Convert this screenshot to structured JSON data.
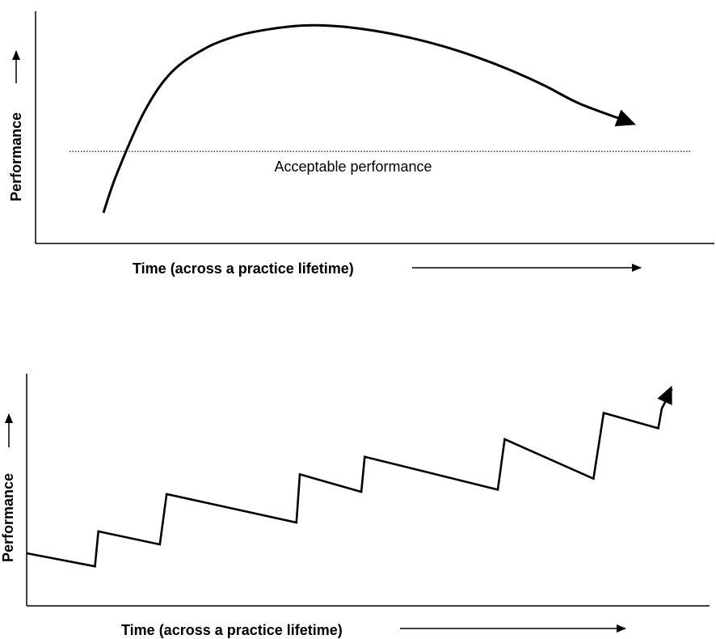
{
  "chart_data": [
    {
      "type": "line",
      "xlabel": "Time (across a practice lifetime)",
      "ylabel": "Performance",
      "x_range": [
        0,
        100
      ],
      "y_range": [
        0,
        100
      ],
      "grid": false,
      "series": [
        {
          "x": [
            10,
            12,
            16,
            20,
            25,
            30,
            35,
            40,
            45,
            50,
            55,
            60,
            65,
            70,
            75,
            80,
            86
          ],
          "y": [
            14,
            32,
            60,
            78,
            89,
            95,
            98,
            99.5,
            99,
            97,
            94,
            90,
            85,
            79,
            72,
            64,
            57
          ]
        }
      ],
      "reference_lines": [
        {
          "y": 42,
          "label": "Acceptable performance",
          "style": "dotted"
        }
      ]
    },
    {
      "type": "line",
      "xlabel": "Time (across a practice lifetime)",
      "ylabel": "Performance",
      "x_range": [
        0,
        100
      ],
      "y_range": [
        0,
        100
      ],
      "grid": false,
      "series": [
        {
          "x": [
            0,
            10,
            10.5,
            19.5,
            20.5,
            39.5,
            40,
            49,
            49.5,
            69,
            70,
            83,
            84.5,
            92.5,
            93,
            94.5
          ],
          "y": [
            24,
            18,
            34,
            28,
            51,
            38,
            60,
            52,
            68,
            53,
            76,
            58,
            88,
            81,
            90,
            99
          ]
        }
      ]
    }
  ]
}
